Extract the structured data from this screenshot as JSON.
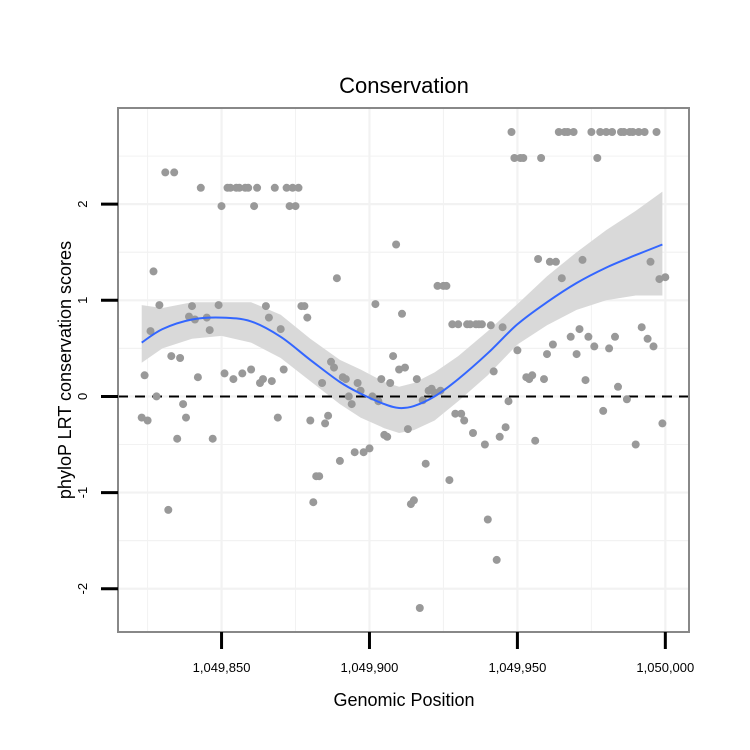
{
  "chart_data": {
    "type": "scatter",
    "title": "Conservation",
    "xlabel": "Genomic Position",
    "ylabel": "phyloP LRT conservation scores",
    "xlim": [
      1049815,
      1050008
    ],
    "ylim": [
      -2.45,
      3.0
    ],
    "x_ticks": [
      1049850,
      1049900,
      1049950,
      1050000
    ],
    "x_tick_labels": [
      "1,049,850",
      "1,049,900",
      "1,049,950",
      "1,050,000"
    ],
    "y_ticks": [
      -2,
      -1,
      0,
      1,
      2
    ],
    "y_tick_labels": [
      "-2",
      "-1",
      "0",
      "1",
      "2"
    ],
    "reference_line": {
      "y": 0,
      "style": "dashed"
    },
    "colors": {
      "points": "#999999",
      "smooth_line": "#3366ff",
      "confidence_band": "#d9d9d9",
      "panel_border": "#888888",
      "grid": "#f2f2f2"
    },
    "smooth": {
      "name": "loess fit",
      "x": [
        1049823,
        1049830,
        1049840,
        1049850,
        1049860,
        1049870,
        1049880,
        1049890,
        1049897,
        1049905,
        1049910,
        1049915,
        1049922,
        1049930,
        1049940,
        1049950,
        1049960,
        1049970,
        1049980,
        1049990,
        1049999
      ],
      "y": [
        0.56,
        0.7,
        0.8,
        0.82,
        0.78,
        0.62,
        0.38,
        0.15,
        0.03,
        -0.08,
        -0.12,
        -0.1,
        0.0,
        0.18,
        0.45,
        0.75,
        0.98,
        1.18,
        1.34,
        1.47,
        1.58
      ],
      "lower": [
        0.35,
        0.5,
        0.6,
        0.63,
        0.56,
        0.4,
        0.16,
        -0.08,
        -0.22,
        -0.33,
        -0.38,
        -0.35,
        -0.25,
        -0.05,
        0.22,
        0.54,
        0.74,
        0.9,
        1.0,
        1.05,
        1.05
      ],
      "upper": [
        0.95,
        0.92,
        0.98,
        0.98,
        0.98,
        0.85,
        0.6,
        0.38,
        0.28,
        0.15,
        0.1,
        0.14,
        0.25,
        0.42,
        0.68,
        0.96,
        1.25,
        1.5,
        1.73,
        1.93,
        2.13
      ]
    },
    "points": [
      [
        1049823,
        -0.22
      ],
      [
        1049824,
        0.22
      ],
      [
        1049825,
        -0.25
      ],
      [
        1049826,
        0.68
      ],
      [
        1049827,
        1.3
      ],
      [
        1049828,
        0.0
      ],
      [
        1049829,
        0.95
      ],
      [
        1049831,
        2.33
      ],
      [
        1049832,
        -1.18
      ],
      [
        1049833,
        0.42
      ],
      [
        1049834,
        2.33
      ],
      [
        1049835,
        -0.44
      ],
      [
        1049836,
        0.4
      ],
      [
        1049837,
        -0.08
      ],
      [
        1049838,
        -0.22
      ],
      [
        1049839,
        0.83
      ],
      [
        1049840,
        0.94
      ],
      [
        1049841,
        0.8
      ],
      [
        1049842,
        0.2
      ],
      [
        1049843,
        2.17
      ],
      [
        1049845,
        0.82
      ],
      [
        1049846,
        0.69
      ],
      [
        1049847,
        -0.44
      ],
      [
        1049849,
        0.95
      ],
      [
        1049850,
        1.98
      ],
      [
        1049851,
        0.24
      ],
      [
        1049852,
        2.17
      ],
      [
        1049853,
        2.17
      ],
      [
        1049854,
        0.18
      ],
      [
        1049855,
        2.17
      ],
      [
        1049856,
        2.17
      ],
      [
        1049857,
        0.24
      ],
      [
        1049858,
        2.17
      ],
      [
        1049859,
        2.17
      ],
      [
        1049860,
        0.28
      ],
      [
        1049861,
        1.98
      ],
      [
        1049862,
        2.17
      ],
      [
        1049863,
        0.14
      ],
      [
        1049864,
        0.18
      ],
      [
        1049865,
        0.94
      ],
      [
        1049866,
        0.82
      ],
      [
        1049867,
        0.16
      ],
      [
        1049868,
        2.17
      ],
      [
        1049869,
        -0.22
      ],
      [
        1049870,
        0.7
      ],
      [
        1049871,
        0.28
      ],
      [
        1049872,
        2.17
      ],
      [
        1049873,
        1.98
      ],
      [
        1049874,
        2.17
      ],
      [
        1049875,
        1.98
      ],
      [
        1049876,
        2.17
      ],
      [
        1049877,
        0.94
      ],
      [
        1049878,
        0.94
      ],
      [
        1049879,
        0.82
      ],
      [
        1049880,
        -0.25
      ],
      [
        1049881,
        -1.1
      ],
      [
        1049882,
        -0.83
      ],
      [
        1049883,
        -0.83
      ],
      [
        1049884,
        0.14
      ],
      [
        1049885,
        -0.28
      ],
      [
        1049886,
        -0.2
      ],
      [
        1049887,
        0.36
      ],
      [
        1049888,
        0.3
      ],
      [
        1049889,
        1.23
      ],
      [
        1049890,
        -0.67
      ],
      [
        1049891,
        0.2
      ],
      [
        1049892,
        0.18
      ],
      [
        1049893,
        0.0
      ],
      [
        1049894,
        -0.08
      ],
      [
        1049895,
        -0.58
      ],
      [
        1049896,
        0.14
      ],
      [
        1049897,
        0.06
      ],
      [
        1049898,
        -0.58
      ],
      [
        1049900,
        -0.54
      ],
      [
        1049901,
        0.0
      ],
      [
        1049902,
        0.96
      ],
      [
        1049903,
        -0.05
      ],
      [
        1049904,
        0.18
      ],
      [
        1049905,
        -0.4
      ],
      [
        1049906,
        -0.42
      ],
      [
        1049907,
        0.14
      ],
      [
        1049908,
        0.42
      ],
      [
        1049909,
        1.58
      ],
      [
        1049910,
        0.28
      ],
      [
        1049911,
        0.86
      ],
      [
        1049912,
        0.3
      ],
      [
        1049913,
        -0.34
      ],
      [
        1049914,
        -1.12
      ],
      [
        1049915,
        -1.08
      ],
      [
        1049916,
        0.18
      ],
      [
        1049917,
        -2.2
      ],
      [
        1049918,
        -0.04
      ],
      [
        1049919,
        -0.7
      ],
      [
        1049920,
        0.06
      ],
      [
        1049921,
        0.08
      ],
      [
        1049922,
        0.04
      ],
      [
        1049923,
        1.15
      ],
      [
        1049924,
        0.06
      ],
      [
        1049925,
        1.15
      ],
      [
        1049926,
        1.15
      ],
      [
        1049927,
        -0.87
      ],
      [
        1049928,
        0.75
      ],
      [
        1049929,
        -0.18
      ],
      [
        1049930,
        0.75
      ],
      [
        1049931,
        -0.18
      ],
      [
        1049932,
        -0.25
      ],
      [
        1049933,
        0.75
      ],
      [
        1049934,
        0.75
      ],
      [
        1049935,
        -0.38
      ],
      [
        1049936,
        0.75
      ],
      [
        1049937,
        0.75
      ],
      [
        1049938,
        0.75
      ],
      [
        1049939,
        -0.5
      ],
      [
        1049940,
        -1.28
      ],
      [
        1049941,
        0.74
      ],
      [
        1049942,
        0.26
      ],
      [
        1049943,
        -1.7
      ],
      [
        1049944,
        -0.42
      ],
      [
        1049945,
        0.72
      ],
      [
        1049946,
        -0.32
      ],
      [
        1049947,
        -0.05
      ],
      [
        1049948,
        2.75
      ],
      [
        1049949,
        2.48
      ],
      [
        1049950,
        0.48
      ],
      [
        1049951,
        2.48
      ],
      [
        1049952,
        2.48
      ],
      [
        1049953,
        0.2
      ],
      [
        1049954,
        0.18
      ],
      [
        1049955,
        0.22
      ],
      [
        1049956,
        -0.46
      ],
      [
        1049957,
        1.43
      ],
      [
        1049958,
        2.48
      ],
      [
        1049959,
        0.18
      ],
      [
        1049960,
        0.44
      ],
      [
        1049961,
        1.4
      ],
      [
        1049962,
        0.54
      ],
      [
        1049963,
        1.4
      ],
      [
        1049964,
        2.75
      ],
      [
        1049965,
        1.23
      ],
      [
        1049966,
        2.75
      ],
      [
        1049967,
        2.75
      ],
      [
        1049968,
        0.62
      ],
      [
        1049969,
        2.75
      ],
      [
        1049970,
        0.44
      ],
      [
        1049971,
        0.7
      ],
      [
        1049972,
        1.42
      ],
      [
        1049973,
        0.17
      ],
      [
        1049974,
        0.62
      ],
      [
        1049975,
        2.75
      ],
      [
        1049976,
        0.52
      ],
      [
        1049977,
        2.48
      ],
      [
        1049978,
        2.75
      ],
      [
        1049979,
        -0.15
      ],
      [
        1049980,
        2.75
      ],
      [
        1049981,
        0.5
      ],
      [
        1049982,
        2.75
      ],
      [
        1049983,
        0.62
      ],
      [
        1049984,
        0.1
      ],
      [
        1049985,
        2.75
      ],
      [
        1049986,
        2.75
      ],
      [
        1049987,
        -0.03
      ],
      [
        1049988,
        2.75
      ],
      [
        1049989,
        2.75
      ],
      [
        1049990,
        -0.5
      ],
      [
        1049991,
        2.75
      ],
      [
        1049992,
        0.72
      ],
      [
        1049993,
        2.75
      ],
      [
        1049994,
        0.6
      ],
      [
        1049995,
        1.4
      ],
      [
        1049996,
        0.52
      ],
      [
        1049997,
        2.75
      ],
      [
        1049998,
        1.22
      ],
      [
        1049999,
        -0.28
      ],
      [
        1050000,
        1.24
      ]
    ]
  }
}
